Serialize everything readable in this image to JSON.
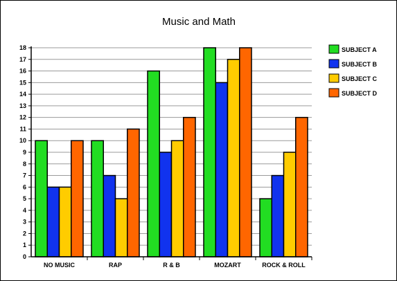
{
  "chart_data": {
    "type": "bar",
    "title": "Music and Math",
    "xlabel": "",
    "ylabel": "",
    "categories": [
      "NO MUSIC",
      "RAP",
      "R & B",
      "MOZART",
      "ROCK & ROLL"
    ],
    "ylim": [
      0,
      18
    ],
    "yticks": [
      "0",
      "1",
      "2",
      "3",
      "4",
      "5",
      "6",
      "7",
      "8",
      "9",
      "10",
      "11",
      "12",
      "13",
      "14",
      "15",
      "16",
      "17",
      "18"
    ],
    "grid": true,
    "legend_position": "right",
    "series": [
      {
        "name": "SUBJECT A",
        "color": "#22dd22",
        "values": [
          10,
          10,
          16,
          18,
          5
        ]
      },
      {
        "name": "SUBJECT B",
        "color": "#1133ee",
        "values": [
          6,
          7,
          9,
          15,
          7
        ]
      },
      {
        "name": "SUBJECT C",
        "color": "#ffcc00",
        "values": [
          6,
          5,
          10,
          17,
          9
        ]
      },
      {
        "name": "SUBJECT D",
        "color": "#ff6600",
        "values": [
          10,
          11,
          12,
          18,
          12
        ]
      }
    ]
  }
}
